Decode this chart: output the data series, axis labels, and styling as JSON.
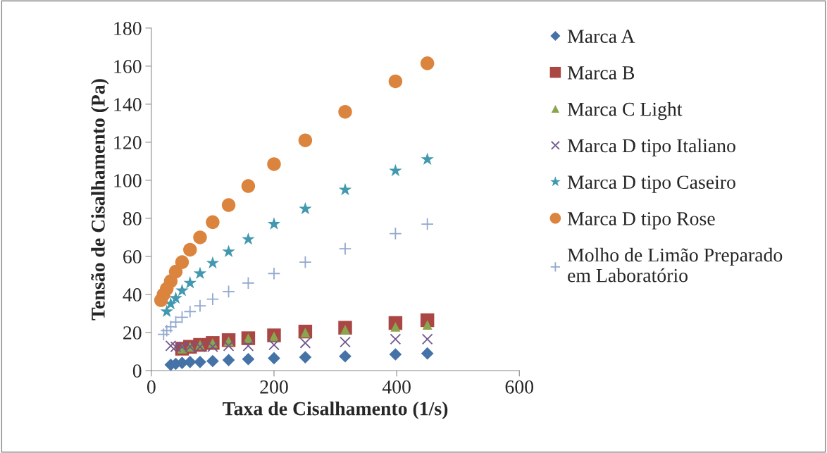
{
  "chart_data": {
    "type": "scatter",
    "xlabel": "Taxa de Cisalhamento (1/s)",
    "ylabel": "Tensão de Cisalhamento (Pa)",
    "xlim": [
      0,
      600
    ],
    "xticks": [
      0,
      200,
      400,
      600
    ],
    "ylim": [
      0,
      180
    ],
    "yticks": [
      0,
      20,
      40,
      60,
      80,
      100,
      120,
      140,
      160,
      180
    ],
    "grid": false,
    "legend": "right",
    "series": [
      {
        "name": "Marca A",
        "color": "#4572a7",
        "marker": "diamond",
        "x": [
          31.6,
          39.8,
          50.1,
          63.1,
          79.4,
          100,
          126,
          158,
          200,
          251,
          316,
          398,
          450
        ],
        "values": [
          3,
          3.5,
          4,
          4.5,
          4.5,
          5,
          5.5,
          6,
          6.5,
          7,
          7.5,
          8.5,
          9
        ]
      },
      {
        "name": "Marca B",
        "color": "#aa4643",
        "marker": "square",
        "x": [
          50.1,
          63.1,
          79.4,
          100,
          126,
          158,
          200,
          251,
          316,
          398,
          450
        ],
        "values": [
          11.5,
          12.5,
          13.5,
          14.5,
          16,
          17,
          18.5,
          20.5,
          22.5,
          25,
          26.5
        ]
      },
      {
        "name": "Marca C Light",
        "color": "#89a54e",
        "marker": "triangle",
        "x": [
          50.1,
          63.1,
          79.4,
          100,
          126,
          158,
          200,
          251,
          316,
          398,
          450
        ],
        "values": [
          11.5,
          12.5,
          13.5,
          14.5,
          15.5,
          17,
          18,
          20,
          21.5,
          23,
          24
        ]
      },
      {
        "name": "Marca D tipo Italiano",
        "color": "#71588f",
        "marker": "cross",
        "x": [
          31.6,
          39.8,
          50.1,
          63.1,
          79.4,
          100,
          126,
          158,
          200,
          251,
          316,
          398,
          450
        ],
        "values": [
          13,
          12.5,
          12.5,
          12.5,
          12.5,
          12.5,
          13,
          13,
          13.5,
          14.5,
          15,
          16.5,
          16.5
        ]
      },
      {
        "name": "Marca D tipo Caseiro",
        "color": "#4198af",
        "marker": "star",
        "x": [
          25.1,
          31.6,
          39.8,
          50.1,
          63.1,
          79.4,
          100,
          126,
          158,
          200,
          251,
          316,
          398,
          450
        ],
        "values": [
          31,
          35,
          38,
          42,
          46,
          51,
          56.5,
          62.5,
          69,
          77,
          85,
          95,
          105,
          111
        ]
      },
      {
        "name": "Marca D tipo Rose",
        "color": "#db843d",
        "marker": "circle",
        "x": [
          15.8,
          20,
          25.1,
          31.6,
          39.8,
          50.1,
          63.1,
          79.4,
          100,
          126,
          158,
          200,
          251,
          316,
          398,
          450
        ],
        "values": [
          37,
          40,
          43,
          47,
          52,
          57,
          63.5,
          70,
          78,
          87,
          97,
          108.5,
          121,
          136,
          152,
          161.5
        ]
      },
      {
        "name": "Molho de Limão Preparado\nem Laboratório",
        "color": "#93a9cf",
        "marker": "plus",
        "x": [
          20,
          25.1,
          31.6,
          39.8,
          50.1,
          63.1,
          79.4,
          100,
          126,
          158,
          200,
          251,
          316,
          398,
          450
        ],
        "values": [
          19,
          21,
          23,
          25.5,
          28,
          31,
          34,
          37.5,
          41.5,
          46,
          51,
          57,
          64,
          72,
          77
        ]
      }
    ]
  }
}
